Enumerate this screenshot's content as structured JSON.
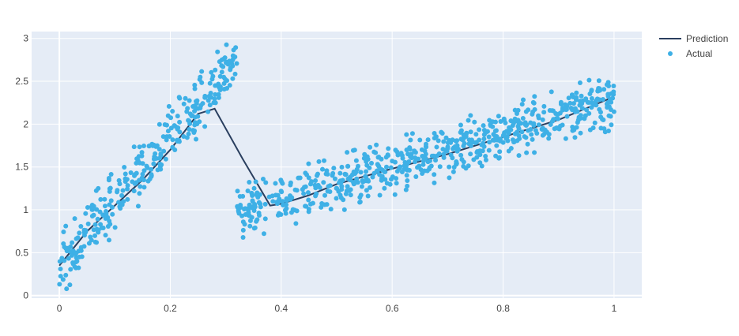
{
  "chart_data": {
    "type": "scatter",
    "title": "",
    "xlabel": "",
    "ylabel": "",
    "xlim": [
      -0.05,
      1.05
    ],
    "ylim": [
      -0.03,
      3.08
    ],
    "xticks": [
      0,
      0.2,
      0.4,
      0.6,
      0.8,
      1
    ],
    "xtick_labels": [
      "0",
      "0.2",
      "0.4",
      "0.6",
      "0.8",
      "1"
    ],
    "yticks": [
      0,
      0.5,
      1,
      1.5,
      2,
      2.5,
      3
    ],
    "ytick_labels": [
      "0",
      "0.5",
      "1",
      "1.5",
      "2",
      "2.5",
      "3"
    ],
    "grid": true,
    "legend_position": "top-right",
    "series": [
      {
        "name": "Prediction",
        "type": "line",
        "color": "#2a3f5f",
        "x": [
          0,
          0.05,
          0.1,
          0.15,
          0.2,
          0.25,
          0.28,
          0.33,
          0.38,
          0.4,
          0.45,
          0.5,
          0.6,
          0.7,
          0.8,
          0.9,
          1.0
        ],
        "y": [
          0.35,
          0.75,
          1.05,
          1.35,
          1.7,
          2.12,
          2.18,
          1.6,
          1.05,
          1.07,
          1.17,
          1.3,
          1.48,
          1.65,
          1.85,
          2.05,
          2.32
        ]
      },
      {
        "name": "Actual",
        "type": "scatter",
        "color": "#3eb0e6",
        "segments": [
          {
            "x_range": [
              0,
              0.32
            ],
            "intercept": 0.35,
            "slope": 7.5,
            "spread": 0.17
          },
          {
            "x_range": [
              0.32,
              1.0
            ],
            "intercept": 0.34,
            "slope": 1.93,
            "spread": 0.15
          }
        ],
        "point_count": 1000
      }
    ]
  }
}
